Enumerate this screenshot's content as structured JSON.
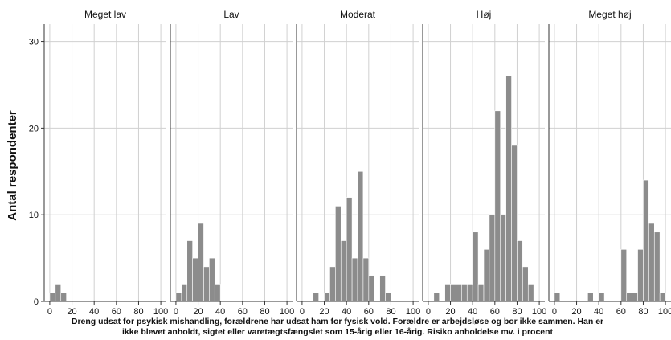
{
  "chart_data": {
    "type": "bar",
    "ylabel": "Antal respondenter",
    "xlabel_lines": [
      "Dreng udsat for psykisk mishandling, forældrene har udsat ham for fysisk vold. Forældre er arbejdsløse og bor ikke sammen. Han er",
      "ikke blevet anholdt, sigtet eller varetægtsfængslet som 15-årig eller 16-årig. Risiko anholdelse mv. i procent"
    ],
    "xlim": [
      -5,
      105
    ],
    "ylim": [
      0,
      32
    ],
    "xticks": [
      0,
      20,
      40,
      60,
      80,
      100
    ],
    "yticks": [
      0,
      10,
      20,
      30
    ],
    "bin_width": 5,
    "grid": true,
    "bar_color": "#8c8c8c",
    "panels": [
      {
        "title": "Meget lav",
        "bins": [
          {
            "x": 0,
            "count": 1
          },
          {
            "x": 5,
            "count": 2
          },
          {
            "x": 10,
            "count": 1
          }
        ]
      },
      {
        "title": "Lav",
        "bins": [
          {
            "x": 0,
            "count": 1
          },
          {
            "x": 5,
            "count": 2
          },
          {
            "x": 10,
            "count": 7
          },
          {
            "x": 15,
            "count": 5
          },
          {
            "x": 20,
            "count": 9
          },
          {
            "x": 25,
            "count": 4
          },
          {
            "x": 30,
            "count": 5
          },
          {
            "x": 35,
            "count": 2
          }
        ]
      },
      {
        "title": "Moderat",
        "bins": [
          {
            "x": 10,
            "count": 1
          },
          {
            "x": 20,
            "count": 1
          },
          {
            "x": 25,
            "count": 4
          },
          {
            "x": 30,
            "count": 11
          },
          {
            "x": 35,
            "count": 7
          },
          {
            "x": 40,
            "count": 12
          },
          {
            "x": 45,
            "count": 5
          },
          {
            "x": 50,
            "count": 15
          },
          {
            "x": 55,
            "count": 5
          },
          {
            "x": 60,
            "count": 3
          },
          {
            "x": 70,
            "count": 3
          },
          {
            "x": 75,
            "count": 1
          }
        ]
      },
      {
        "title": "Høj",
        "bins": [
          {
            "x": 5,
            "count": 1
          },
          {
            "x": 15,
            "count": 2
          },
          {
            "x": 20,
            "count": 2
          },
          {
            "x": 25,
            "count": 2
          },
          {
            "x": 30,
            "count": 2
          },
          {
            "x": 35,
            "count": 2
          },
          {
            "x": 40,
            "count": 8
          },
          {
            "x": 45,
            "count": 2
          },
          {
            "x": 50,
            "count": 6
          },
          {
            "x": 55,
            "count": 10
          },
          {
            "x": 60,
            "count": 22
          },
          {
            "x": 65,
            "count": 10
          },
          {
            "x": 70,
            "count": 26
          },
          {
            "x": 75,
            "count": 18
          },
          {
            "x": 80,
            "count": 7
          },
          {
            "x": 85,
            "count": 4
          },
          {
            "x": 90,
            "count": 2
          }
        ]
      },
      {
        "title": "Meget høj",
        "bins": [
          {
            "x": 0,
            "count": 1
          },
          {
            "x": 30,
            "count": 1
          },
          {
            "x": 40,
            "count": 1
          },
          {
            "x": 60,
            "count": 6
          },
          {
            "x": 65,
            "count": 1
          },
          {
            "x": 70,
            "count": 1
          },
          {
            "x": 75,
            "count": 6
          },
          {
            "x": 80,
            "count": 14
          },
          {
            "x": 85,
            "count": 9
          },
          {
            "x": 90,
            "count": 8
          },
          {
            "x": 95,
            "count": 1
          }
        ]
      }
    ]
  }
}
